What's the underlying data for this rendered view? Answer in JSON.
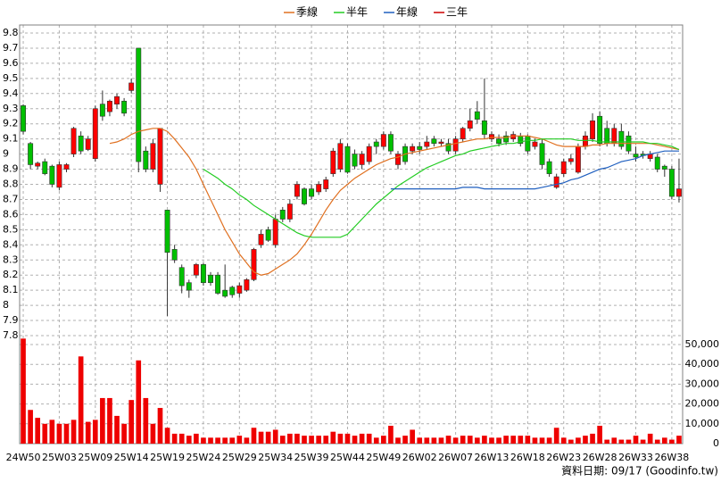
{
  "chart_data": {
    "type": "candlestick",
    "categories": [
      "24W50",
      null,
      null,
      null,
      null,
      "25W03",
      null,
      null,
      null,
      null,
      "25W09",
      null,
      null,
      null,
      null,
      "25W14",
      null,
      null,
      null,
      null,
      "25W19",
      null,
      null,
      null,
      null,
      "25W24",
      null,
      null,
      null,
      null,
      "25W29",
      null,
      null,
      null,
      null,
      "25W34",
      null,
      null,
      null,
      null,
      "25W39",
      null,
      null,
      null,
      null,
      "25W44",
      null,
      null,
      null,
      null,
      "25W49",
      null,
      null,
      null,
      null,
      "26W02",
      null,
      null,
      null,
      null,
      "26W07",
      null,
      null,
      null,
      null,
      "26W13",
      null,
      null,
      null,
      null,
      "26W18",
      null,
      null,
      null,
      null,
      "26W23",
      null,
      null,
      null,
      null,
      "26W28",
      null,
      null,
      null,
      null,
      "26W33",
      null,
      null,
      null,
      null,
      "26W38",
      null
    ],
    "open": [
      9.32,
      9.07,
      8.92,
      8.95,
      8.92,
      8.78,
      8.9,
      9.0,
      9.12,
      9.03,
      8.97,
      9.33,
      9.28,
      9.33,
      9.35,
      9.42,
      9.7,
      9.02,
      8.9,
      8.8,
      8.63,
      8.37,
      8.25,
      8.15,
      8.2,
      8.27,
      8.2,
      8.2,
      8.1,
      8.12,
      8.08,
      8.1,
      8.17,
      8.4,
      8.5,
      8.4,
      8.63,
      8.57,
      8.72,
      8.77,
      8.77,
      8.75,
      8.77,
      8.87,
      8.9,
      9.05,
      9.0,
      8.93,
      8.95,
      9.08,
      9.05,
      9.13,
      8.93,
      9.05,
      9.02,
      9.05,
      9.05,
      9.1,
      9.07,
      9.07,
      9.02,
      9.1,
      9.17,
      9.28,
      9.22,
      9.1,
      9.1,
      9.12,
      9.1,
      9.12,
      9.12,
      9.05,
      9.07,
      8.95,
      8.78,
      8.87,
      8.95,
      8.88,
      9.05,
      9.1,
      9.25,
      9.17,
      9.07,
      9.15,
      9.12,
      9.0,
      9.0,
      8.97,
      8.98,
      8.92,
      8.9,
      8.72
    ],
    "high": [
      9.33,
      9.08,
      8.95,
      8.97,
      8.93,
      8.95,
      8.94,
      9.18,
      9.15,
      9.12,
      9.32,
      9.42,
      9.36,
      9.4,
      9.37,
      9.5,
      9.7,
      9.05,
      9.1,
      9.17,
      8.63,
      8.4,
      8.27,
      8.17,
      8.28,
      8.28,
      8.22,
      8.22,
      8.27,
      8.13,
      8.15,
      8.18,
      8.38,
      8.5,
      8.52,
      8.6,
      8.65,
      8.7,
      8.82,
      8.78,
      8.8,
      8.82,
      8.85,
      9.04,
      9.1,
      9.07,
      9.03,
      9.02,
      9.07,
      9.1,
      9.15,
      9.15,
      9.02,
      9.07,
      9.07,
      9.08,
      9.12,
      9.12,
      9.1,
      9.1,
      9.12,
      9.18,
      9.3,
      9.35,
      9.5,
      9.15,
      9.13,
      9.15,
      9.15,
      9.14,
      9.13,
      9.1,
      9.1,
      8.97,
      8.87,
      8.97,
      9.0,
      9.07,
      9.15,
      9.27,
      9.28,
      9.22,
      9.2,
      9.2,
      9.15,
      9.05,
      9.02,
      9.02,
      9.0,
      8.93,
      8.92,
      8.97
    ],
    "low": [
      9.13,
      8.9,
      8.9,
      8.86,
      8.78,
      8.76,
      8.88,
      8.98,
      9.0,
      9.02,
      8.95,
      9.22,
      9.25,
      9.3,
      9.25,
      9.4,
      8.88,
      8.88,
      8.88,
      8.75,
      7.93,
      8.28,
      8.08,
      8.05,
      8.18,
      8.13,
      8.13,
      8.07,
      8.05,
      8.05,
      8.05,
      8.09,
      8.16,
      8.38,
      8.42,
      8.38,
      8.55,
      8.55,
      8.7,
      8.66,
      8.7,
      8.73,
      8.75,
      8.85,
      8.88,
      8.87,
      8.9,
      8.9,
      8.93,
      9.0,
      9.03,
      9.0,
      8.9,
      8.93,
      9.0,
      9.0,
      9.03,
      9.05,
      9.05,
      9.0,
      9.0,
      9.08,
      9.15,
      9.2,
      9.1,
      9.08,
      9.05,
      9.06,
      9.08,
      9.05,
      9.0,
      9.03,
      8.9,
      8.85,
      8.77,
      8.85,
      8.93,
      8.87,
      9.03,
      9.08,
      9.05,
      9.05,
      9.05,
      9.03,
      9.0,
      8.95,
      8.97,
      8.95,
      8.88,
      8.85,
      8.7,
      8.68
    ],
    "close": [
      9.15,
      8.93,
      8.94,
      8.87,
      8.8,
      8.93,
      8.93,
      9.17,
      9.02,
      9.1,
      9.3,
      9.25,
      9.35,
      9.38,
      9.27,
      9.47,
      8.95,
      8.9,
      9.07,
      9.17,
      8.35,
      8.3,
      8.13,
      8.1,
      8.27,
      8.15,
      8.15,
      8.08,
      8.06,
      8.07,
      8.13,
      8.17,
      8.37,
      8.47,
      8.43,
      8.57,
      8.57,
      8.67,
      8.8,
      8.67,
      8.72,
      8.8,
      8.83,
      9.02,
      9.07,
      8.88,
      8.92,
      9.0,
      9.05,
      9.05,
      9.13,
      9.02,
      9.0,
      8.95,
      9.05,
      9.03,
      9.08,
      9.07,
      9.08,
      9.02,
      9.1,
      9.17,
      9.22,
      9.23,
      9.13,
      9.13,
      9.07,
      9.08,
      9.13,
      9.07,
      9.02,
      9.08,
      8.93,
      8.87,
      8.85,
      8.95,
      8.97,
      9.05,
      9.12,
      9.22,
      9.07,
      9.07,
      9.17,
      9.05,
      9.02,
      8.98,
      8.99,
      9.0,
      8.9,
      8.9,
      8.72,
      8.77
    ],
    "up_color": "#ff0000",
    "down_color": "#00c000",
    "series": [
      {
        "name": "季線",
        "color": "#e07020",
        "values": [
          null,
          null,
          null,
          null,
          null,
          null,
          null,
          null,
          null,
          null,
          null,
          null,
          9.07,
          9.08,
          9.1,
          9.13,
          9.15,
          9.16,
          9.17,
          9.17,
          9.15,
          9.1,
          9.04,
          8.98,
          8.9,
          8.8,
          8.7,
          8.6,
          8.5,
          8.42,
          8.34,
          8.28,
          8.22,
          8.2,
          8.21,
          8.24,
          8.27,
          8.3,
          8.34,
          8.4,
          8.47,
          8.55,
          8.63,
          8.7,
          8.76,
          8.8,
          8.84,
          8.87,
          8.9,
          8.93,
          8.95,
          8.97,
          8.98,
          9.0,
          9.01,
          9.02,
          9.03,
          9.04,
          9.05,
          9.06,
          9.07,
          9.08,
          9.09,
          9.1,
          9.1,
          9.11,
          9.11,
          9.11,
          9.12,
          9.12,
          9.12,
          9.11,
          9.1,
          9.08,
          9.06,
          9.05,
          9.05,
          9.05,
          9.05,
          9.06,
          9.06,
          9.07,
          9.07,
          9.07,
          9.07,
          9.07,
          9.07,
          9.07,
          9.06,
          9.05,
          9.04,
          9.03
        ]
      },
      {
        "name": "半年",
        "color": "#22cc22",
        "values": [
          null,
          null,
          null,
          null,
          null,
          null,
          null,
          null,
          null,
          null,
          null,
          null,
          null,
          null,
          null,
          null,
          null,
          null,
          null,
          null,
          null,
          null,
          null,
          null,
          null,
          8.9,
          8.87,
          8.84,
          8.8,
          8.77,
          8.73,
          8.7,
          8.66,
          8.63,
          8.6,
          8.57,
          8.54,
          8.51,
          8.48,
          8.46,
          8.45,
          8.45,
          8.45,
          8.45,
          8.45,
          8.47,
          8.52,
          8.57,
          8.62,
          8.67,
          8.71,
          8.75,
          8.79,
          8.82,
          8.85,
          8.88,
          8.91,
          8.93,
          8.95,
          8.97,
          8.99,
          9.0,
          9.02,
          9.03,
          9.04,
          9.05,
          9.06,
          9.07,
          9.07,
          9.08,
          9.09,
          9.09,
          9.1,
          9.1,
          9.1,
          9.1,
          9.1,
          9.09,
          9.09,
          9.09,
          9.08,
          9.08,
          9.08,
          9.08,
          9.08,
          9.08,
          9.08,
          9.07,
          9.07,
          9.06,
          9.05,
          9.03
        ]
      },
      {
        "name": "年線",
        "color": "#1f5fbf",
        "values": [
          null,
          null,
          null,
          null,
          null,
          null,
          null,
          null,
          null,
          null,
          null,
          null,
          null,
          null,
          null,
          null,
          null,
          null,
          null,
          null,
          null,
          null,
          null,
          null,
          null,
          null,
          null,
          null,
          null,
          null,
          null,
          null,
          null,
          null,
          null,
          null,
          null,
          null,
          null,
          null,
          null,
          null,
          null,
          null,
          null,
          null,
          null,
          null,
          null,
          null,
          null,
          8.77,
          8.77,
          8.77,
          8.77,
          8.77,
          8.77,
          8.77,
          8.77,
          8.77,
          8.77,
          8.78,
          8.78,
          8.78,
          8.77,
          8.77,
          8.77,
          8.77,
          8.77,
          8.77,
          8.77,
          8.77,
          8.78,
          8.79,
          8.8,
          8.81,
          8.83,
          8.84,
          8.86,
          8.88,
          8.9,
          8.91,
          8.93,
          8.95,
          8.96,
          8.97,
          8.99,
          9.0,
          9.01,
          9.02,
          9.02,
          9.02
        ]
      },
      {
        "name": "三年",
        "color": "#cc0000",
        "values": [
          null,
          null,
          null,
          null,
          null,
          null,
          null,
          null,
          null,
          null,
          null,
          null,
          null,
          null,
          null,
          null,
          null,
          null,
          null,
          null,
          null,
          null,
          null,
          null,
          null,
          null,
          null,
          null,
          null,
          null,
          null,
          null,
          null,
          null,
          null,
          null,
          null,
          null,
          null,
          null,
          null,
          null,
          null,
          null,
          null,
          null,
          null,
          null,
          null,
          null,
          null,
          null,
          null,
          null,
          null,
          null,
          null,
          null,
          null,
          null,
          null,
          null,
          null,
          null,
          null,
          null,
          null,
          null,
          null,
          null,
          null,
          null,
          null,
          null,
          null,
          null,
          null,
          null,
          null,
          null,
          null,
          null,
          null,
          null,
          null,
          null,
          null,
          null,
          null,
          null,
          null,
          null
        ]
      }
    ],
    "volume": [
      53000,
      17000,
      13000,
      10000,
      12000,
      10000,
      10000,
      12000,
      44000,
      11000,
      12000,
      23000,
      23000,
      14000,
      10000,
      22000,
      42000,
      23000,
      10000,
      18000,
      8000,
      5000,
      5000,
      4000,
      5000,
      3000,
      3000,
      3000,
      3000,
      3000,
      4000,
      3000,
      8000,
      6000,
      6000,
      7000,
      4000,
      5000,
      5000,
      4000,
      4000,
      4000,
      4000,
      6000,
      5000,
      5000,
      4000,
      5000,
      5000,
      3000,
      4000,
      9000,
      3000,
      4000,
      7000,
      3000,
      3000,
      3000,
      3000,
      4000,
      3000,
      4000,
      4000,
      3000,
      4000,
      3000,
      3000,
      4000,
      4000,
      4000,
      4000,
      3000,
      3000,
      3000,
      8000,
      3000,
      2000,
      3000,
      4000,
      5000,
      9000,
      2000,
      3000,
      2000,
      2000,
      4000,
      2000,
      5000,
      2000,
      3000,
      2000,
      4000
    ],
    "volume_color": "#ee0000",
    "ylim": [
      7.8,
      9.8
    ],
    "yticks": [
      7.8,
      7.9,
      8,
      8.1,
      8.2,
      8.3,
      8.4,
      8.5,
      8.6,
      8.7,
      8.8,
      8.9,
      9,
      9.1,
      9.2,
      9.3,
      9.4,
      9.5,
      9.6,
      9.7,
      9.8
    ],
    "y2lim": [
      0,
      54500
    ],
    "y2ticks": [
      0,
      {
        "value": 10000,
        "label": "10,000"
      },
      {
        "value": 20000,
        "label": "20,000"
      },
      {
        "value": 30000,
        "label": "30,000"
      },
      {
        "value": 40000,
        "label": "40,000"
      },
      {
        "value": 50000,
        "label": "50,000"
      }
    ],
    "grid": true,
    "source": "資料日期: 09/17  (Goodinfo.tw)"
  }
}
